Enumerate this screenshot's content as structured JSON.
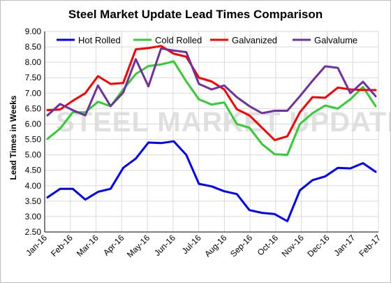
{
  "chart_data": {
    "type": "line",
    "title": "Steel Market Update Lead Times Comparison",
    "xlabel": "",
    "ylabel": "Lead Times in Weeks",
    "ylim": [
      2.5,
      9.0
    ],
    "yticks": [
      "2.50",
      "3.00",
      "3.50",
      "4.00",
      "4.50",
      "5.00",
      "5.50",
      "6.00",
      "6.50",
      "7.00",
      "7.50",
      "8.00",
      "8.50",
      "9.00"
    ],
    "xtick_labels": [
      "Jan-16",
      "Feb-16",
      "Mar-16",
      "Apr-16",
      "May-16",
      "Jun-16",
      "Jul-16",
      "Aug-16",
      "Sep-16",
      "Oct-16",
      "Nov-16",
      "Dec-16",
      "Jan-17",
      "Feb-17"
    ],
    "grid": true,
    "legend_position": "top",
    "watermark": "STEEL MARKET UPDATE",
    "series": [
      {
        "name": "Hot Rolled",
        "color": "#0000ff",
        "values": [
          3.62,
          3.9,
          3.9,
          3.55,
          3.8,
          3.9,
          4.58,
          4.88,
          5.4,
          5.38,
          5.44,
          5.0,
          4.06,
          3.98,
          3.82,
          3.73,
          3.21,
          3.12,
          3.08,
          2.85,
          3.85,
          4.18,
          4.3,
          4.58,
          4.56,
          4.73,
          4.45
        ]
      },
      {
        "name": "Cold Rolled",
        "color": "#33cc33",
        "values": [
          5.52,
          5.85,
          6.38,
          6.38,
          6.72,
          6.58,
          7.12,
          7.62,
          7.88,
          7.93,
          8.03,
          7.38,
          6.8,
          6.63,
          6.7,
          6.0,
          5.88,
          5.35,
          5.02,
          5.0,
          6.0,
          6.35,
          6.6,
          6.5,
          6.8,
          7.2,
          6.58
        ]
      },
      {
        "name": "Galvanized",
        "color": "#ff0000",
        "values": [
          6.45,
          6.47,
          6.75,
          7.0,
          7.55,
          7.3,
          7.33,
          8.42,
          8.46,
          8.53,
          8.28,
          8.18,
          7.5,
          7.38,
          7.12,
          6.48,
          6.28,
          5.88,
          5.48,
          5.6,
          6.38,
          6.87,
          6.85,
          7.18,
          7.12,
          7.1,
          7.1
        ]
      },
      {
        "name": "Galvalume",
        "color": "#7030a0",
        "values": [
          6.28,
          6.65,
          6.45,
          6.28,
          7.25,
          6.58,
          7.02,
          8.1,
          7.22,
          8.45,
          8.38,
          8.33,
          7.3,
          7.12,
          7.25,
          6.87,
          6.58,
          6.35,
          6.43,
          6.43,
          6.9,
          7.4,
          7.87,
          7.82,
          7.0,
          7.37,
          6.9
        ]
      }
    ]
  }
}
